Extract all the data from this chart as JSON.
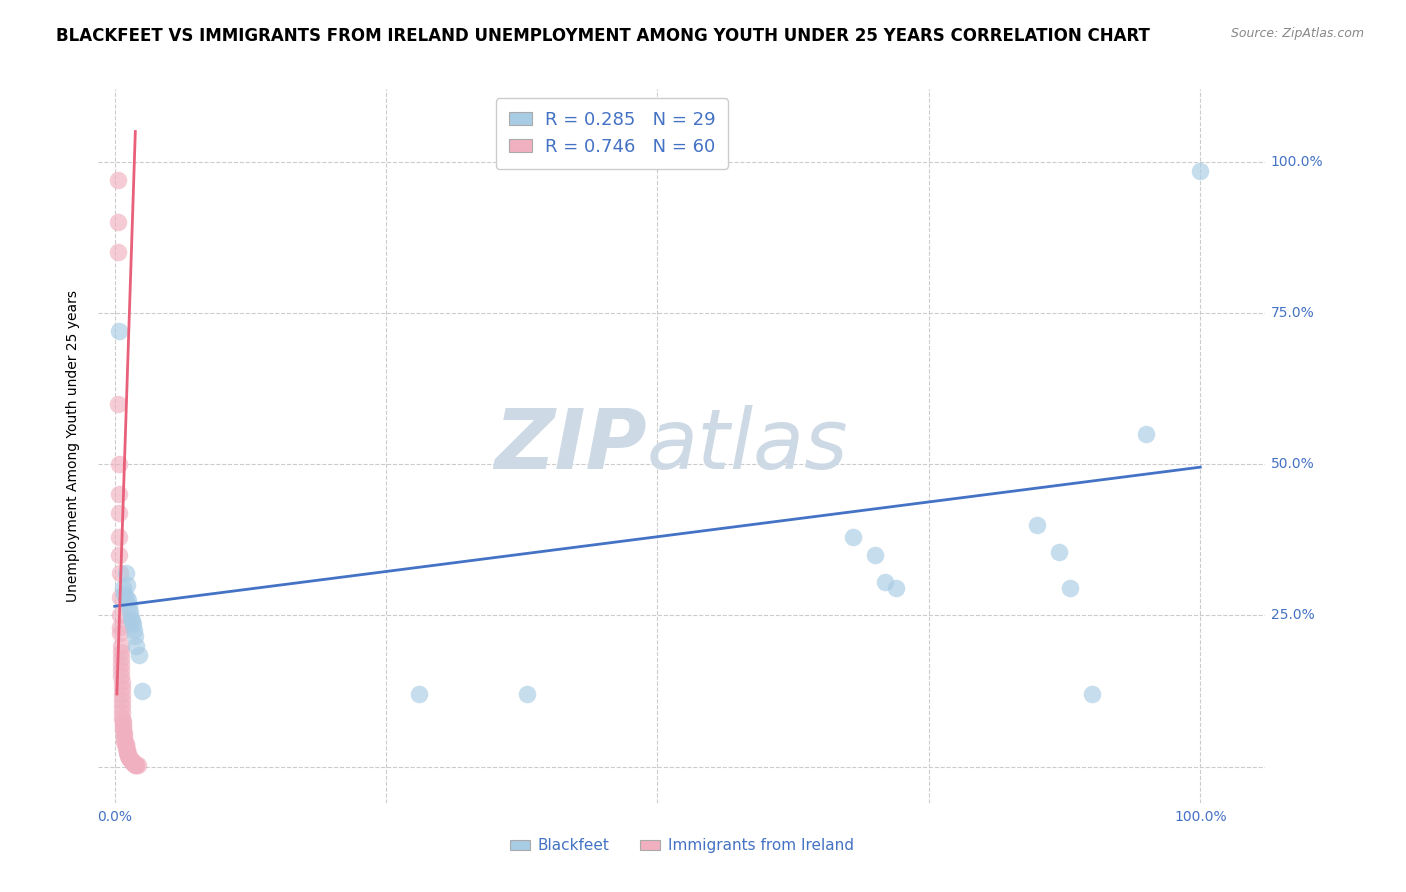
{
  "title": "BLACKFEET VS IMMIGRANTS FROM IRELAND UNEMPLOYMENT AMONG YOUTH UNDER 25 YEARS CORRELATION CHART",
  "source": "Source: ZipAtlas.com",
  "ylabel": "Unemployment Among Youth under 25 years",
  "watermark_line1": "ZIP",
  "watermark_line2": "atlas",
  "legend1_label": "R = 0.285   N = 29",
  "legend2_label": "R = 0.746   N = 60",
  "legend_bottom1": "Blackfeet",
  "legend_bottom2": "Immigrants from Ireland",
  "blue_color": "#a8cce4",
  "pink_color": "#f0b0c0",
  "blue_line_color": "#4472c4",
  "pink_line_color": "#e8607a",
  "tick_color": "#4472c4",
  "blue_scatter": [
    [
      0.004,
      0.72
    ],
    [
      0.008,
      0.295
    ],
    [
      0.009,
      0.285
    ],
    [
      0.01,
      0.32
    ],
    [
      0.01,
      0.28
    ],
    [
      0.011,
      0.3
    ],
    [
      0.012,
      0.275
    ],
    [
      0.013,
      0.265
    ],
    [
      0.014,
      0.255
    ],
    [
      0.015,
      0.245
    ],
    [
      0.016,
      0.24
    ],
    [
      0.017,
      0.235
    ],
    [
      0.018,
      0.225
    ],
    [
      0.019,
      0.215
    ],
    [
      0.02,
      0.2
    ],
    [
      0.022,
      0.185
    ],
    [
      0.025,
      0.125
    ],
    [
      0.28,
      0.12
    ],
    [
      0.68,
      0.38
    ],
    [
      0.7,
      0.35
    ],
    [
      0.71,
      0.305
    ],
    [
      0.72,
      0.295
    ],
    [
      0.85,
      0.4
    ],
    [
      0.87,
      0.355
    ],
    [
      0.88,
      0.295
    ],
    [
      0.9,
      0.12
    ],
    [
      0.95,
      0.55
    ],
    [
      0.38,
      0.12
    ],
    [
      1.0,
      0.985
    ]
  ],
  "pink_scatter": [
    [
      0.003,
      0.97
    ],
    [
      0.003,
      0.9
    ],
    [
      0.003,
      0.85
    ],
    [
      0.003,
      0.6
    ],
    [
      0.004,
      0.5
    ],
    [
      0.004,
      0.45
    ],
    [
      0.004,
      0.42
    ],
    [
      0.004,
      0.38
    ],
    [
      0.004,
      0.35
    ],
    [
      0.005,
      0.32
    ],
    [
      0.005,
      0.28
    ],
    [
      0.005,
      0.25
    ],
    [
      0.005,
      0.23
    ],
    [
      0.005,
      0.22
    ],
    [
      0.006,
      0.2
    ],
    [
      0.006,
      0.19
    ],
    [
      0.006,
      0.18
    ],
    [
      0.006,
      0.17
    ],
    [
      0.006,
      0.16
    ],
    [
      0.006,
      0.15
    ],
    [
      0.007,
      0.14
    ],
    [
      0.007,
      0.13
    ],
    [
      0.007,
      0.12
    ],
    [
      0.007,
      0.11
    ],
    [
      0.007,
      0.1
    ],
    [
      0.007,
      0.09
    ],
    [
      0.007,
      0.08
    ],
    [
      0.008,
      0.075
    ],
    [
      0.008,
      0.07
    ],
    [
      0.008,
      0.065
    ],
    [
      0.008,
      0.06
    ],
    [
      0.009,
      0.055
    ],
    [
      0.009,
      0.05
    ],
    [
      0.009,
      0.045
    ],
    [
      0.009,
      0.04
    ],
    [
      0.01,
      0.038
    ],
    [
      0.01,
      0.035
    ],
    [
      0.01,
      0.03
    ],
    [
      0.011,
      0.028
    ],
    [
      0.011,
      0.025
    ],
    [
      0.011,
      0.022
    ],
    [
      0.012,
      0.02
    ],
    [
      0.012,
      0.018
    ],
    [
      0.013,
      0.016
    ],
    [
      0.013,
      0.014
    ],
    [
      0.014,
      0.013
    ],
    [
      0.014,
      0.012
    ],
    [
      0.015,
      0.011
    ],
    [
      0.015,
      0.01
    ],
    [
      0.016,
      0.009
    ],
    [
      0.016,
      0.008
    ],
    [
      0.017,
      0.007
    ],
    [
      0.017,
      0.006
    ],
    [
      0.018,
      0.005
    ],
    [
      0.018,
      0.004
    ],
    [
      0.019,
      0.004
    ],
    [
      0.019,
      0.003
    ],
    [
      0.02,
      0.003
    ],
    [
      0.02,
      0.002
    ],
    [
      0.021,
      0.002
    ]
  ],
  "blue_line_x": [
    0.0,
    1.0
  ],
  "blue_line_y": [
    0.265,
    0.495
  ],
  "pink_line_x": [
    0.002,
    0.019
  ],
  "pink_line_y": [
    0.12,
    1.05
  ],
  "xlim": [
    -0.015,
    1.06
  ],
  "ylim": [
    -0.06,
    1.12
  ],
  "xtick_positions": [
    0.0,
    0.25,
    0.5,
    0.75,
    1.0
  ],
  "xticklabels": [
    "0.0%",
    "",
    "",
    "",
    "100.0%"
  ],
  "ytick_positions": [
    0.0,
    0.25,
    0.5,
    0.75,
    1.0
  ],
  "ytick_labels_right": [
    "",
    "25.0%",
    "50.0%",
    "75.0%",
    "100.0%"
  ],
  "grid_color": "#cccccc",
  "background_color": "#ffffff",
  "title_fontsize": 12,
  "source_fontsize": 9,
  "axis_label_fontsize": 10,
  "tick_fontsize": 10,
  "watermark_color": "#cdd9e5",
  "watermark_fontsize_zip": 60,
  "watermark_fontsize_atlas": 60
}
